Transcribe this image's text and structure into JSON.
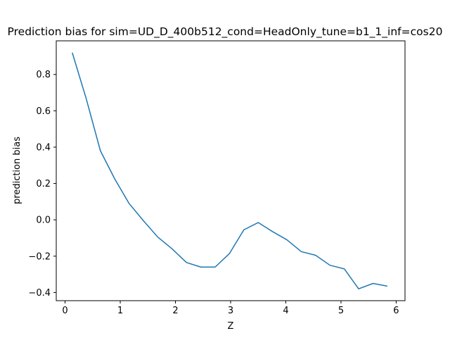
{
  "chart_data": {
    "type": "line",
    "title": "Prediction bias for sim=UD_D_400b512_cond=HeadOnly_tune=b1_1_inf=cos20",
    "xlabel": "Z",
    "ylabel": "prediction bias",
    "xlim": [
      -0.16,
      6.16
    ],
    "ylim": [
      -0.445,
      0.985
    ],
    "x_ticks": [
      0,
      1,
      2,
      3,
      4,
      5,
      6
    ],
    "y_ticks": [
      -0.4,
      -0.2,
      0.0,
      0.2,
      0.4,
      0.6,
      0.8
    ],
    "x_tick_labels": [
      "0",
      "1",
      "2",
      "3",
      "4",
      "5",
      "6"
    ],
    "y_tick_labels": [
      "−0.4",
      "−0.2",
      "0.0",
      "0.2",
      "0.4",
      "0.6",
      "0.8"
    ],
    "grid": false,
    "series": [
      {
        "color": "#1f77b4",
        "x": [
          0.13,
          0.38,
          0.64,
          0.9,
          1.16,
          1.42,
          1.68,
          1.94,
          2.2,
          2.46,
          2.72,
          2.98,
          3.24,
          3.5,
          3.76,
          4.02,
          4.28,
          4.54,
          4.8,
          5.06,
          5.32,
          5.58,
          5.84
        ],
        "y": [
          0.92,
          0.67,
          0.38,
          0.225,
          0.09,
          -0.005,
          -0.095,
          -0.16,
          -0.235,
          -0.26,
          -0.26,
          -0.185,
          -0.055,
          -0.015,
          -0.065,
          -0.11,
          -0.175,
          -0.195,
          -0.25,
          -0.27,
          -0.38,
          -0.35,
          -0.365
        ]
      }
    ]
  }
}
